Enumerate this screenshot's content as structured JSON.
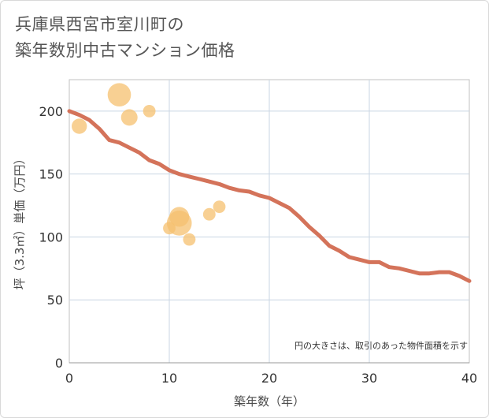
{
  "title": {
    "line1": "兵庫県西宮市室川町の",
    "line2": "築年数別中古マンション価格"
  },
  "colors": {
    "line": "#d4735a",
    "bubble": "#f5c06f",
    "grid": "#c9d6e3",
    "plot_border": "#c0c0c0"
  },
  "chart_data": {
    "type": "scatter",
    "xlabel": "築年数（年）",
    "ylabel": "坪（3.3㎡）単価（万円）",
    "xlim": [
      0,
      40
    ],
    "ylim": [
      0,
      225
    ],
    "xticks": [
      0,
      10,
      20,
      30,
      40
    ],
    "yticks": [
      0,
      50,
      100,
      150,
      200
    ],
    "grid": true,
    "note": "円の大きさは、取引のあった物件面積を示す",
    "series": [
      {
        "kind": "bubble",
        "points": [
          {
            "x": 1,
            "y": 188,
            "size": 3
          },
          {
            "x": 5,
            "y": 213,
            "size": 7
          },
          {
            "x": 6,
            "y": 195,
            "size": 3.5
          },
          {
            "x": 8,
            "y": 200,
            "size": 2
          },
          {
            "x": 10,
            "y": 107,
            "size": 2
          },
          {
            "x": 11,
            "y": 111,
            "size": 8
          },
          {
            "x": 11,
            "y": 116,
            "size": 5
          },
          {
            "x": 12,
            "y": 98,
            "size": 2
          },
          {
            "x": 14,
            "y": 118,
            "size": 2
          },
          {
            "x": 15,
            "y": 124,
            "size": 2
          }
        ]
      },
      {
        "kind": "line",
        "x": [
          0,
          1,
          2,
          3,
          4,
          5,
          6,
          7,
          8,
          9,
          10,
          11,
          12,
          13,
          14,
          15,
          16,
          17,
          18,
          19,
          20,
          21,
          22,
          23,
          24,
          25,
          26,
          27,
          28,
          29,
          30,
          31,
          32,
          33,
          34,
          35,
          36,
          37,
          38,
          39,
          40
        ],
        "y": [
          200,
          197,
          193,
          186,
          177,
          175,
          171,
          167,
          161,
          158,
          153,
          150,
          148,
          146,
          144,
          142,
          139,
          137,
          136,
          133,
          131,
          127,
          123,
          116,
          108,
          101,
          93,
          89,
          84,
          82,
          80,
          80,
          76,
          75,
          73,
          71,
          71,
          72,
          72,
          69,
          65
        ]
      }
    ]
  }
}
